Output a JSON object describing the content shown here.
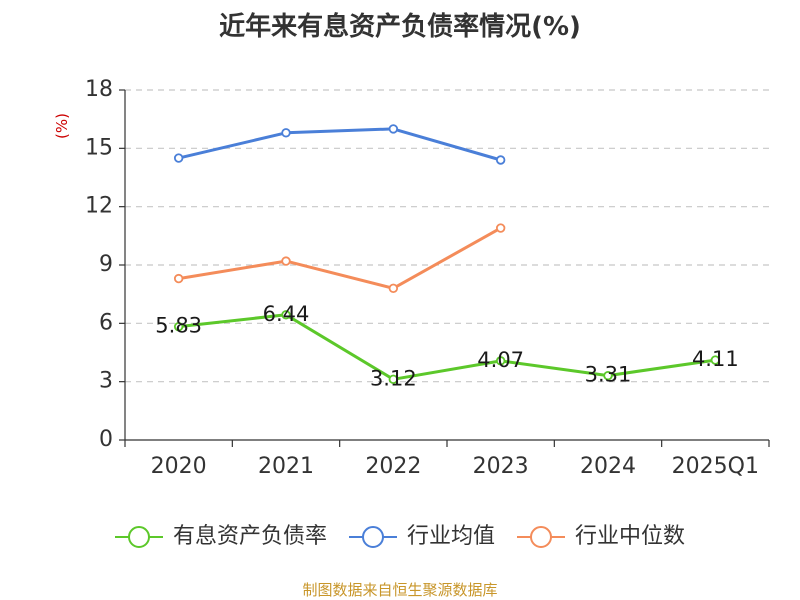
{
  "chart_data": {
    "type": "line",
    "title": "近年来有息资产负债率情况(%)",
    "ylabel": "(%)",
    "categories": [
      "2020",
      "2021",
      "2022",
      "2023",
      "2024",
      "2025Q1"
    ],
    "ylim": [
      0,
      18
    ],
    "yticks": [
      0,
      3,
      6,
      9,
      12,
      15,
      18
    ],
    "grid": true,
    "legend_position": "bottom",
    "series": [
      {
        "name": "有息资产负债率",
        "color": "#5cc82a",
        "values": [
          5.83,
          6.44,
          3.12,
          4.07,
          3.31,
          4.11
        ],
        "labels": [
          "5.83",
          "6.44",
          "3.12",
          "4.07",
          "3.31",
          "4.11"
        ]
      },
      {
        "name": "行业均值",
        "color": "#4a7fd8",
        "values": [
          14.5,
          15.8,
          16.0,
          14.4,
          null,
          null
        ]
      },
      {
        "name": "行业中位数",
        "color": "#f48c5a",
        "values": [
          8.3,
          9.2,
          7.8,
          10.9,
          null,
          null
        ]
      }
    ],
    "source": "制图数据来自恒生聚源数据库"
  }
}
